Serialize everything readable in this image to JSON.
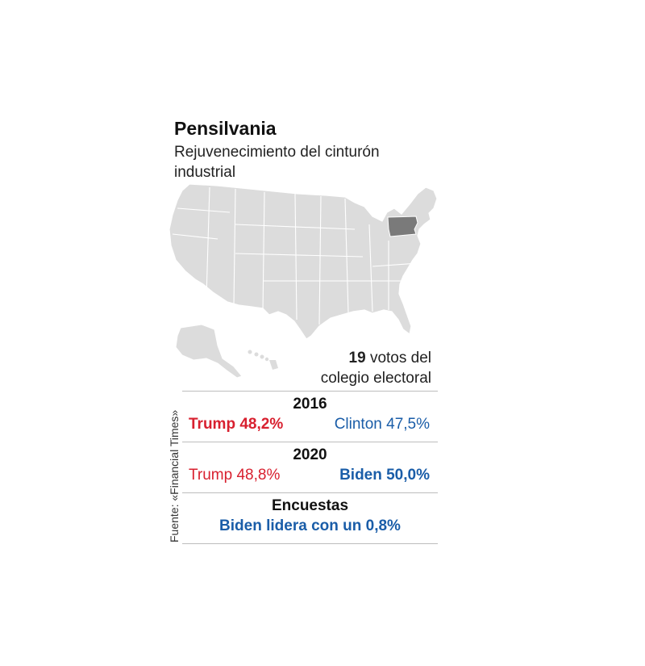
{
  "title": "Pensilvania",
  "subtitle": "Rejuvenecimiento del cinturón industrial",
  "electoral": {
    "number": "19",
    "text_line1": " votos del",
    "text_line2": "colegio electoral"
  },
  "source": "Fuente: «Financial Times»",
  "colors": {
    "republican": "#d8202f",
    "democrat": "#1a5da8",
    "highlight_state": "#7a7a7a",
    "other_states": "#dcdcdc"
  },
  "map": {
    "highlighted_state": "Pennsylvania"
  },
  "results": [
    {
      "year": "2016",
      "left": "Trump 48,2%",
      "right": "Clinton 47,5%",
      "winner": "left"
    },
    {
      "year": "2020",
      "left": "Trump 48,8%",
      "right": "Biden 50,0%",
      "winner": "right"
    },
    {
      "year": "Encuestas",
      "center": "Biden lidera con un 0,8%"
    }
  ]
}
